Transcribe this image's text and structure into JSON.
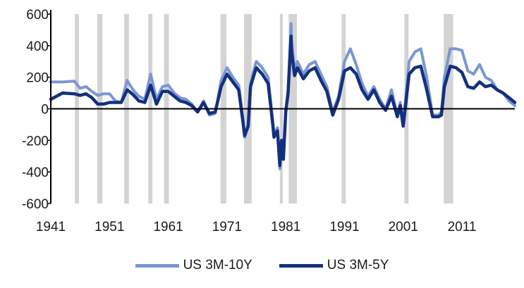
{
  "chart_data": {
    "type": "line",
    "title": "",
    "xlabel": "",
    "ylabel": "",
    "xlim": [
      1941,
      2020
    ],
    "ylim": [
      -600,
      600
    ],
    "x_ticks": [
      "1941",
      "1951",
      "1961",
      "1971",
      "1981",
      "1991",
      "2001",
      "2011"
    ],
    "y_ticks": [
      "600",
      "400",
      "200",
      "0",
      "-200",
      "-400",
      "-600"
    ],
    "grid": false,
    "legend_position": "bottom",
    "recession_bands": [
      [
        1945.1,
        1945.8
      ],
      [
        1948.9,
        1949.8
      ],
      [
        1953.5,
        1954.3
      ],
      [
        1957.6,
        1958.3
      ],
      [
        1960.3,
        1961.1
      ],
      [
        1969.9,
        1970.9
      ],
      [
        1973.9,
        1975.2
      ],
      [
        1980.0,
        1980.5
      ],
      [
        1981.5,
        1982.9
      ],
      [
        1990.5,
        1991.2
      ],
      [
        2001.2,
        2001.9
      ],
      [
        2007.9,
        2009.5
      ]
    ],
    "colors": {
      "US 3M-10Y": "#7b97d1",
      "US 3M-5Y": "#13307f",
      "band": "#d3d3d3"
    },
    "series": [
      {
        "name": "US 3M-10Y",
        "x": [
          1941,
          1943,
          1945,
          1946,
          1947,
          1948,
          1949,
          1950,
          1951,
          1952,
          1953,
          1954,
          1955,
          1956,
          1957,
          1958,
          1959,
          1960,
          1961,
          1962,
          1963,
          1964,
          1965,
          1966,
          1967,
          1968,
          1969,
          1970,
          1971,
          1972,
          1973,
          1973.7,
          1974,
          1974.6,
          1975,
          1975.8,
          1976,
          1977,
          1978,
          1978.8,
          1979,
          1979.6,
          1980,
          1980.3,
          1980.6,
          1981,
          1981.4,
          1981.9,
          1982,
          1982.5,
          1983,
          1984,
          1985,
          1986,
          1987,
          1988,
          1989,
          1990,
          1991,
          1992,
          1993,
          1994,
          1995,
          1996,
          1997,
          1998,
          1999,
          2000,
          2000.5,
          2001,
          2002,
          2003,
          2004,
          2005,
          2006,
          2007,
          2007.5,
          2008,
          2009,
          2010,
          2011,
          2012,
          2013,
          2014,
          2015,
          2016,
          2017,
          2018,
          2019,
          2020
        ],
        "y": [
          170,
          170,
          175,
          130,
          140,
          110,
          85,
          95,
          95,
          50,
          40,
          180,
          120,
          80,
          60,
          220,
          60,
          140,
          150,
          100,
          70,
          60,
          30,
          -20,
          50,
          -40,
          -30,
          180,
          260,
          200,
          150,
          -60,
          -180,
          -100,
          160,
          280,
          300,
          260,
          200,
          -80,
          -160,
          -120,
          -380,
          -200,
          -300,
          -10,
          120,
          540,
          420,
          250,
          300,
          220,
          280,
          300,
          220,
          140,
          -20,
          80,
          300,
          380,
          280,
          160,
          80,
          140,
          60,
          0,
          120,
          -40,
          40,
          -100,
          300,
          360,
          380,
          200,
          -40,
          -40,
          -20,
          200,
          380,
          380,
          370,
          240,
          220,
          280,
          200,
          180,
          120,
          100,
          50,
          20
        ]
      },
      {
        "name": "US 3M-5Y",
        "x": [
          1941,
          1943,
          1945,
          1946,
          1947,
          1948,
          1949,
          1950,
          1951,
          1952,
          1953,
          1954,
          1955,
          1956,
          1957,
          1958,
          1959,
          1960,
          1961,
          1962,
          1963,
          1964,
          1965,
          1966,
          1967,
          1968,
          1969,
          1970,
          1971,
          1972,
          1973,
          1973.7,
          1974,
          1974.6,
          1975,
          1975.8,
          1976,
          1977,
          1978,
          1978.8,
          1979,
          1979.6,
          1980,
          1980.3,
          1980.6,
          1981,
          1981.4,
          1981.9,
          1982,
          1982.5,
          1983,
          1984,
          1985,
          1986,
          1987,
          1988,
          1989,
          1990,
          1991,
          1992,
          1993,
          1994,
          1995,
          1996,
          1997,
          1998,
          1999,
          2000,
          2000.5,
          2001,
          2002,
          2003,
          2004,
          2005,
          2006,
          2007,
          2007.5,
          2008,
          2009,
          2010,
          2011,
          2012,
          2013,
          2014,
          2015,
          2016,
          2017,
          2018,
          2019,
          2020
        ],
        "y": [
          60,
          100,
          95,
          85,
          95,
          70,
          30,
          30,
          40,
          40,
          40,
          120,
          90,
          50,
          40,
          150,
          30,
          110,
          110,
          80,
          50,
          40,
          20,
          -20,
          40,
          -30,
          -20,
          140,
          220,
          170,
          120,
          -80,
          -170,
          -110,
          140,
          240,
          260,
          220,
          160,
          -100,
          -180,
          -140,
          -360,
          -200,
          -320,
          -20,
          100,
          460,
          360,
          210,
          260,
          190,
          240,
          260,
          180,
          110,
          -40,
          60,
          240,
          260,
          220,
          120,
          60,
          120,
          40,
          -10,
          80,
          -50,
          20,
          -110,
          220,
          260,
          270,
          120,
          -50,
          -50,
          -40,
          140,
          270,
          260,
          230,
          140,
          130,
          170,
          140,
          150,
          120,
          100,
          70,
          40
        ]
      }
    ]
  },
  "legend": {
    "series_1_label": "US 3M-10Y",
    "series_2_label": "US 3M-5Y"
  }
}
